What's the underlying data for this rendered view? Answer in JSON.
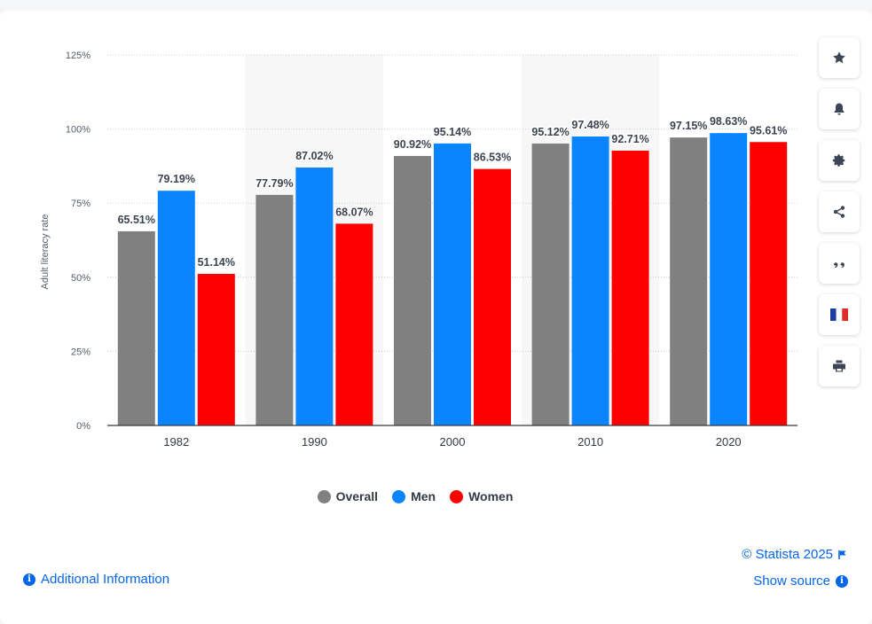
{
  "chart_data": {
    "type": "bar",
    "categories": [
      "1982",
      "1990",
      "2000",
      "2010",
      "2020"
    ],
    "series": [
      {
        "name": "Overall",
        "color": "#808080",
        "values": [
          65.51,
          77.79,
          90.92,
          95.12,
          97.15
        ],
        "labels": [
          "65.51%",
          "77.79%",
          "90.92%",
          "95.12%",
          "97.15%"
        ]
      },
      {
        "name": "Men",
        "color": "#0a84ff",
        "values": [
          79.19,
          87.02,
          95.14,
          97.48,
          98.63
        ],
        "labels": [
          "79.19%",
          "87.02%",
          "95.14%",
          "97.48%",
          "98.63%"
        ]
      },
      {
        "name": "Women",
        "color": "#ff0000",
        "values": [
          51.14,
          68.07,
          86.53,
          92.71,
          95.61
        ],
        "labels": [
          "51.14%",
          "68.07%",
          "86.53%",
          "92.71%",
          "95.61%"
        ]
      }
    ],
    "ylabel": "Adult literacy rate",
    "xlabel": "",
    "ylim": [
      0,
      125
    ],
    "yticks": [
      0,
      25,
      50,
      75,
      100,
      125
    ],
    "ytick_labels": [
      "0%",
      "25%",
      "50%",
      "75%",
      "100%",
      "125%"
    ],
    "grid": true,
    "legend_position": "bottom"
  },
  "footer": {
    "copyright": "© Statista 2025",
    "show_source": "Show source",
    "additional_info": "Additional Information"
  },
  "toolbar": [
    "star-icon",
    "bell-icon",
    "gear-icon",
    "share-icon",
    "quote-icon",
    "flag-fr-icon",
    "print-icon"
  ]
}
